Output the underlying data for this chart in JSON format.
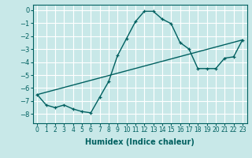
{
  "xlabel": "Humidex (Indice chaleur)",
  "ylabel": "",
  "background_color": "#c8e8e8",
  "grid_color": "#ffffff",
  "line_color": "#006060",
  "xlim": [
    -0.5,
    23.5
  ],
  "ylim": [
    -8.7,
    0.4
  ],
  "yticks": [
    0,
    -1,
    -2,
    -3,
    -4,
    -5,
    -6,
    -7,
    -8
  ],
  "xticks": [
    0,
    1,
    2,
    3,
    4,
    5,
    6,
    7,
    8,
    9,
    10,
    11,
    12,
    13,
    14,
    15,
    16,
    17,
    18,
    19,
    20,
    21,
    22,
    23
  ],
  "curve1_x": [
    0,
    1,
    2,
    3,
    4,
    5,
    6,
    7,
    8,
    9,
    10,
    11,
    12,
    13,
    14,
    15,
    16,
    17,
    18,
    19,
    20,
    21,
    22,
    23
  ],
  "curve1_y": [
    -6.5,
    -7.3,
    -7.5,
    -7.3,
    -7.6,
    -7.8,
    -7.9,
    -6.7,
    -5.5,
    -3.5,
    -2.2,
    -0.9,
    -0.1,
    -0.1,
    -0.7,
    -1.05,
    -2.5,
    -3.0,
    -4.5,
    -4.5,
    -4.5,
    -3.7,
    -3.6,
    -2.3
  ],
  "curve2_x": [
    0,
    23
  ],
  "curve2_y": [
    -6.5,
    -2.3
  ]
}
